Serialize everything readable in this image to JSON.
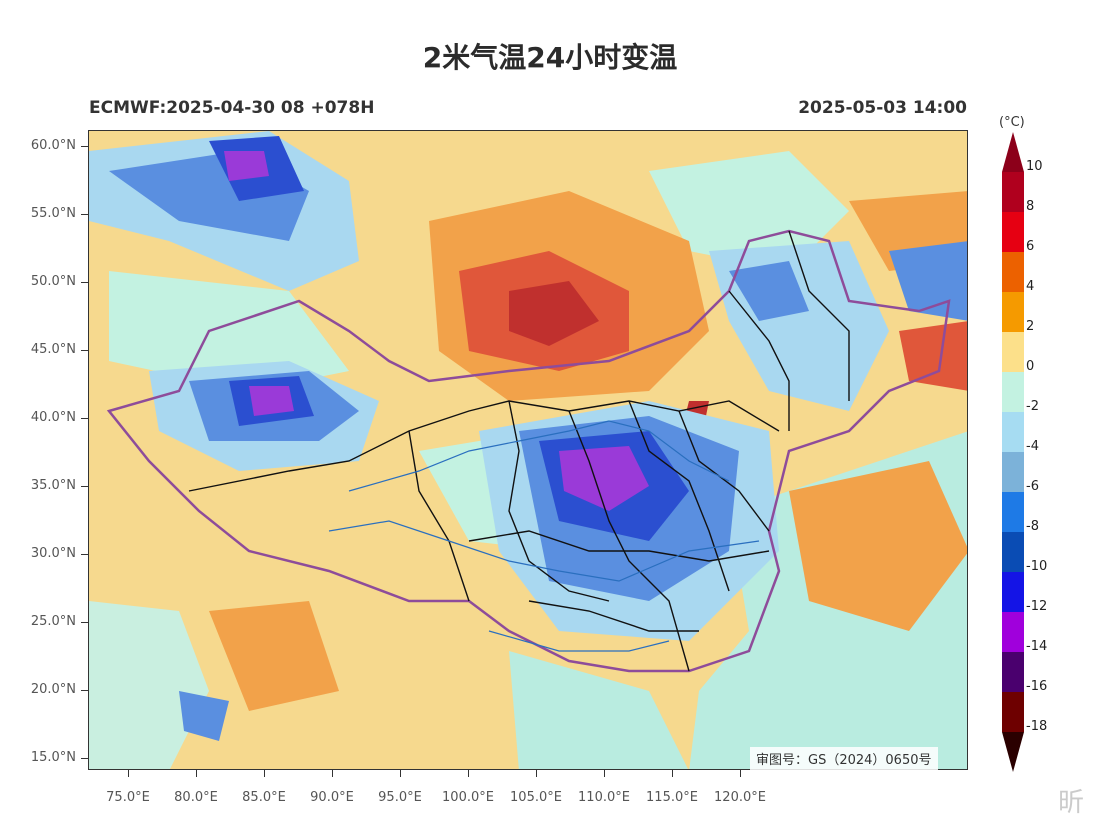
{
  "title": "2米气温24小时变温",
  "subtitle_left": "ECMWF:2025-04-30 08 +078H",
  "subtitle_right": "2025-05-03 14:00",
  "approval": "审图号：GS（2024）0650号",
  "watermark": "昕",
  "lat_labels": [
    "60.0°N",
    "55.0°N",
    "50.0°N",
    "45.0°N",
    "40.0°N",
    "35.0°N",
    "30.0°N",
    "25.0°N",
    "20.0°N",
    "15.0°N"
  ],
  "lon_labels": [
    "75.0°E",
    "80.0°E",
    "85.0°E",
    "90.0°E",
    "95.0°E",
    "100.0°E",
    "105.0°E",
    "110.0°E",
    "115.0°E",
    "120.0°E"
  ],
  "colorbar": {
    "unit": "(°C)",
    "labels": [
      "10",
      "8",
      "6",
      "4",
      "2",
      "0",
      "-2",
      "-4",
      "-6",
      "-8",
      "-10",
      "-12",
      "-14",
      "-16",
      "-18"
    ],
    "colors": [
      "#b0001e",
      "#e60012",
      "#ec6100",
      "#f59a00",
      "#fce08a",
      "#c3f2e1",
      "#a6dcf2",
      "#7cb2d9",
      "#1e7ae6",
      "#0a4cb4",
      "#1414e6",
      "#a000dc",
      "#4a006e",
      "#6e0000"
    ],
    "top_cap": "#8c001a",
    "bottom_cap": "#2a0000"
  },
  "map_colors": {
    "ocean": "#b9ece0",
    "land_warm": "#f6d98e",
    "orange": "#f2a24a",
    "red": "#e0573a",
    "deep_red": "#c0302e",
    "light_blue": "#a9d8f0",
    "mid_blue": "#5a8fe0",
    "dark_blue": "#2b4fd0",
    "purple": "#9a3ad8",
    "border_purple": "#8e4c9a",
    "border_black": "#111111",
    "river_blue": "#2a6fbf"
  }
}
